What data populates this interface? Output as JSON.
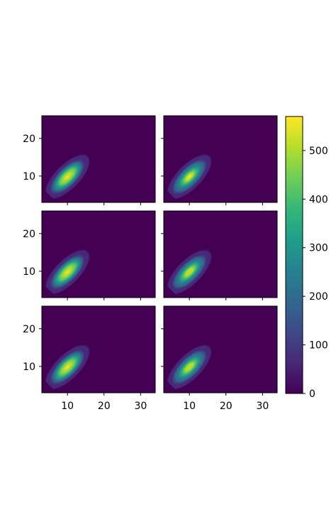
{
  "chart_data": {
    "type": "heatmap",
    "layout": {
      "rows": 3,
      "cols": 2,
      "sharex": true,
      "sharey": true
    },
    "title": "",
    "xlabel": "",
    "ylabel": "",
    "xlim": [
      3,
      34
    ],
    "ylim": [
      3,
      26
    ],
    "x_ticks": [
      {
        "value": 10,
        "label": "10"
      },
      {
        "value": 20,
        "label": "20"
      },
      {
        "value": 30,
        "label": "30"
      }
    ],
    "y_ticks": [
      {
        "value": 10,
        "label": "10"
      },
      {
        "value": 20,
        "label": "20"
      }
    ],
    "colormap": "viridis",
    "colorbar": {
      "min": 0,
      "max": 570,
      "ticks": [
        {
          "value": 0,
          "label": "0"
        },
        {
          "value": 100,
          "label": "100"
        },
        {
          "value": 200,
          "label": "200"
        },
        {
          "value": 300,
          "label": "300"
        },
        {
          "value": 400,
          "label": "400"
        },
        {
          "value": 500,
          "label": "500"
        }
      ],
      "colors": [
        "#440154",
        "#482878",
        "#3e4989",
        "#31688e",
        "#26828e",
        "#1f9e89",
        "#35b779",
        "#6ece58",
        "#b5de2b",
        "#fde725"
      ]
    },
    "background_color": "#440154",
    "panels": [
      {
        "peak_x": 10,
        "peak_y": 9.8,
        "peak_count": 570,
        "spread": 3.2,
        "tilt_deg": 45
      },
      {
        "peak_x": 10,
        "peak_y": 9.8,
        "peak_count": 540,
        "spread": 3.2,
        "tilt_deg": 45
      },
      {
        "peak_x": 10,
        "peak_y": 9.8,
        "peak_count": 560,
        "spread": 3.2,
        "tilt_deg": 45
      },
      {
        "peak_x": 10,
        "peak_y": 9.8,
        "peak_count": 530,
        "spread": 3.2,
        "tilt_deg": 45
      },
      {
        "peak_x": 10,
        "peak_y": 9.8,
        "peak_count": 560,
        "spread": 3.2,
        "tilt_deg": 45
      },
      {
        "peak_x": 10,
        "peak_y": 9.8,
        "peak_count": 530,
        "spread": 3.2,
        "tilt_deg": 45
      }
    ]
  }
}
